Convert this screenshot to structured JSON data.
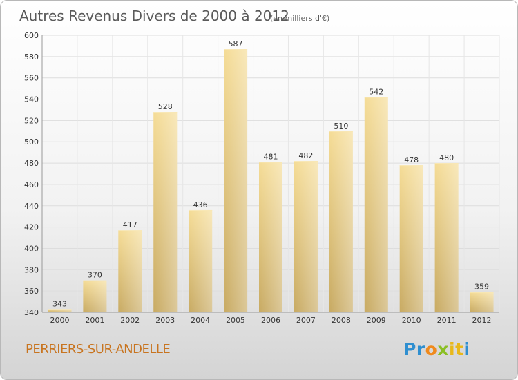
{
  "chart_data": {
    "type": "bar",
    "title": "Autres Revenus Divers de 2000 à 2012",
    "subtitle": "(en milliers d'€)",
    "categories": [
      "2000",
      "2001",
      "2002",
      "2003",
      "2004",
      "2005",
      "2006",
      "2007",
      "2008",
      "2009",
      "2010",
      "2011",
      "2012"
    ],
    "values": [
      343,
      370,
      417,
      528,
      436,
      587,
      481,
      482,
      510,
      542,
      478,
      480,
      359
    ],
    "ylim": [
      340,
      600
    ],
    "yticks": [
      340,
      360,
      380,
      400,
      420,
      440,
      460,
      480,
      500,
      520,
      540,
      560,
      580,
      600
    ],
    "grid": true,
    "bar_color": "#e8cf85"
  },
  "place": "PERRIERS-SUR-ANDELLE",
  "brand": {
    "letters": [
      {
        "char": "P",
        "color": "#2f8fd0"
      },
      {
        "char": "r",
        "color": "#2f8fd0"
      },
      {
        "char": "o",
        "color": "#f08a1c"
      },
      {
        "char": "x",
        "color": "#8bbf25"
      },
      {
        "char": "i",
        "color": "#e8b81a"
      },
      {
        "char": "t",
        "color": "#e8b81a"
      },
      {
        "char": "i",
        "color": "#2f8fd0"
      }
    ]
  }
}
